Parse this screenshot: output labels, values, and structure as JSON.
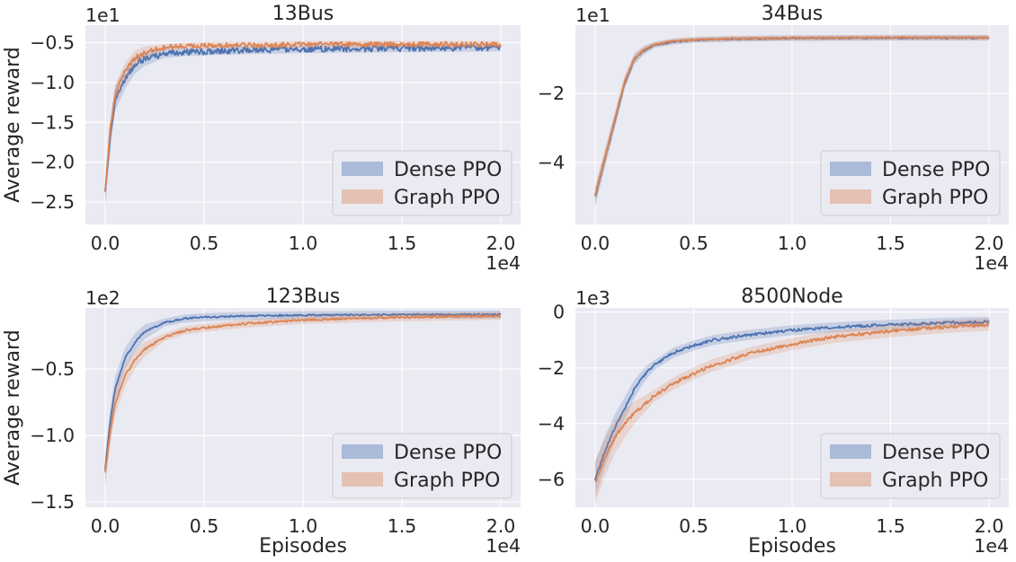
{
  "colors": {
    "dense": "#4c72b0",
    "graph": "#dd8452",
    "plot_bg": "#eaeaf2",
    "grid": "#ffffff",
    "legend_bg": "#eaeaf2",
    "legend_border": "#cccccc"
  },
  "chart_data": [
    {
      "type": "line",
      "title": "13Bus",
      "xlabel": "",
      "ylabel": "Average reward",
      "x_offset_label": "1e4",
      "y_offset_label": "1e1",
      "xlim": [
        -0.1,
        2.1
      ],
      "ylim": [
        -2.78,
        -0.28
      ],
      "xticks": [
        0.0,
        0.5,
        1.0,
        1.5,
        2.0
      ],
      "xtick_labels": [
        "0.0",
        "0.5",
        "1.0",
        "1.5",
        "2.0"
      ],
      "yticks": [
        -2.5,
        -2.0,
        -1.5,
        -1.0,
        -0.5
      ],
      "ytick_labels": [
        "−2.5",
        "−2.0",
        "−1.5",
        "−1.0",
        "−0.5"
      ],
      "grid": true,
      "legend": {
        "position": "lower-right",
        "entries": [
          "Dense PPO",
          "Graph PPO"
        ]
      },
      "series": [
        {
          "name": "Dense PPO",
          "x": [
            0.0,
            0.025,
            0.05,
            0.1,
            0.15,
            0.2,
            0.3,
            0.4,
            0.6,
            0.8,
            1.0,
            1.5,
            2.0
          ],
          "y": [
            -2.4,
            -1.7,
            -1.2,
            -0.95,
            -0.78,
            -0.7,
            -0.64,
            -0.62,
            -0.6,
            -0.59,
            -0.58,
            -0.57,
            -0.56
          ],
          "band": 0.05,
          "noise": 0.04
        },
        {
          "name": "Graph PPO",
          "x": [
            0.0,
            0.025,
            0.05,
            0.1,
            0.15,
            0.2,
            0.3,
            0.4,
            0.6,
            0.8,
            1.0,
            1.5,
            2.0
          ],
          "y": [
            -2.36,
            -1.6,
            -1.15,
            -0.86,
            -0.69,
            -0.62,
            -0.56,
            -0.54,
            -0.53,
            -0.53,
            -0.52,
            -0.52,
            -0.52
          ],
          "band": 0.04,
          "noise": 0.03
        }
      ]
    },
    {
      "type": "line",
      "title": "34Bus",
      "xlabel": "",
      "ylabel": "",
      "x_offset_label": "1e4",
      "y_offset_label": "1e1",
      "xlim": [
        -0.1,
        2.1
      ],
      "ylim": [
        -5.8,
        -0.02
      ],
      "xticks": [
        0.0,
        0.5,
        1.0,
        1.5,
        2.0
      ],
      "xtick_labels": [
        "0.0",
        "0.5",
        "1.0",
        "1.5",
        "2.0"
      ],
      "yticks": [
        -4,
        -2
      ],
      "ytick_labels": [
        "−4",
        "−2"
      ],
      "grid": true,
      "legend": {
        "position": "lower-right",
        "entries": [
          "Dense PPO",
          "Graph PPO"
        ]
      },
      "series": [
        {
          "name": "Dense PPO",
          "x": [
            0.0,
            0.025,
            0.05,
            0.1,
            0.15,
            0.2,
            0.25,
            0.3,
            0.4,
            0.5,
            0.7,
            1.0,
            1.5,
            2.0
          ],
          "y": [
            -5.0,
            -4.45,
            -3.9,
            -2.8,
            -1.7,
            -1.0,
            -0.75,
            -0.6,
            -0.5,
            -0.45,
            -0.42,
            -0.4,
            -0.39,
            -0.39
          ],
          "band": 0.08,
          "noise": 0.02
        },
        {
          "name": "Graph PPO",
          "x": [
            0.0,
            0.025,
            0.05,
            0.1,
            0.15,
            0.2,
            0.25,
            0.3,
            0.4,
            0.5,
            0.7,
            1.0,
            1.5,
            2.0
          ],
          "y": [
            -4.95,
            -4.4,
            -3.85,
            -2.75,
            -1.65,
            -0.98,
            -0.72,
            -0.58,
            -0.48,
            -0.44,
            -0.41,
            -0.39,
            -0.38,
            -0.38
          ],
          "band": 0.08,
          "noise": 0.02
        }
      ]
    },
    {
      "type": "line",
      "title": "123Bus",
      "xlabel": "Episodes",
      "ylabel": "Average reward",
      "x_offset_label": "1e4",
      "y_offset_label": "1e2",
      "xlim": [
        -0.1,
        2.1
      ],
      "ylim": [
        -1.54,
        -0.04
      ],
      "xticks": [
        0.0,
        0.5,
        1.0,
        1.5,
        2.0
      ],
      "xtick_labels": [
        "0.0",
        "0.5",
        "1.0",
        "1.5",
        "2.0"
      ],
      "yticks": [
        -1.5,
        -1.0,
        -0.5
      ],
      "ytick_labels": [
        "−1.5",
        "−1.0",
        "−0.5"
      ],
      "grid": true,
      "legend": {
        "position": "lower-right",
        "entries": [
          "Dense PPO",
          "Graph PPO"
        ]
      },
      "series": [
        {
          "name": "Dense PPO",
          "x": [
            0.0,
            0.025,
            0.05,
            0.1,
            0.15,
            0.2,
            0.3,
            0.4,
            0.5,
            0.7,
            1.0,
            1.5,
            2.0
          ],
          "y": [
            -1.25,
            -0.9,
            -0.65,
            -0.42,
            -0.3,
            -0.22,
            -0.15,
            -0.12,
            -0.11,
            -0.1,
            -0.095,
            -0.09,
            -0.09
          ],
          "band": 0.03,
          "noise": 0.006
        },
        {
          "name": "Graph PPO",
          "x": [
            0.0,
            0.025,
            0.05,
            0.1,
            0.15,
            0.2,
            0.3,
            0.4,
            0.5,
            0.7,
            1.0,
            1.5,
            2.0
          ],
          "y": [
            -1.28,
            -0.98,
            -0.76,
            -0.55,
            -0.43,
            -0.35,
            -0.26,
            -0.21,
            -0.19,
            -0.16,
            -0.13,
            -0.11,
            -0.1
          ],
          "band": 0.03,
          "noise": 0.008
        }
      ]
    },
    {
      "type": "line",
      "title": "8500Node",
      "xlabel": "Episodes",
      "ylabel": "",
      "x_offset_label": "1e4",
      "y_offset_label": "1e3",
      "xlim": [
        -0.1,
        2.1
      ],
      "ylim": [
        -7.0,
        0.15
      ],
      "xticks": [
        0.0,
        0.5,
        1.0,
        1.5,
        2.0
      ],
      "xtick_labels": [
        "0.0",
        "0.5",
        "1.0",
        "1.5",
        "2.0"
      ],
      "yticks": [
        -6,
        -4,
        -2,
        0
      ],
      "ytick_labels": [
        "−6",
        "−4",
        "−2",
        "0"
      ],
      "grid": true,
      "legend": {
        "position": "lower-right",
        "entries": [
          "Dense PPO",
          "Graph PPO"
        ]
      },
      "series": [
        {
          "name": "Dense PPO",
          "x": [
            0.0,
            0.05,
            0.1,
            0.15,
            0.2,
            0.25,
            0.3,
            0.4,
            0.5,
            0.6,
            0.8,
            1.0,
            1.2,
            1.5,
            1.8,
            2.0
          ],
          "y": [
            -6.0,
            -5.0,
            -4.15,
            -3.45,
            -2.75,
            -2.25,
            -1.9,
            -1.45,
            -1.2,
            -1.0,
            -0.8,
            -0.65,
            -0.55,
            -0.45,
            -0.38,
            -0.35
          ],
          "band": 0.18,
          "noise": 0.05
        },
        {
          "name": "Graph PPO",
          "x": [
            0.0,
            0.05,
            0.1,
            0.15,
            0.2,
            0.3,
            0.4,
            0.5,
            0.6,
            0.8,
            1.0,
            1.2,
            1.5,
            1.8,
            2.0
          ],
          "y": [
            -6.1,
            -5.2,
            -4.5,
            -4.0,
            -3.6,
            -3.0,
            -2.55,
            -2.2,
            -1.9,
            -1.45,
            -1.15,
            -0.9,
            -0.68,
            -0.52,
            -0.45
          ],
          "band": 0.22,
          "noise": 0.06
        }
      ]
    }
  ]
}
